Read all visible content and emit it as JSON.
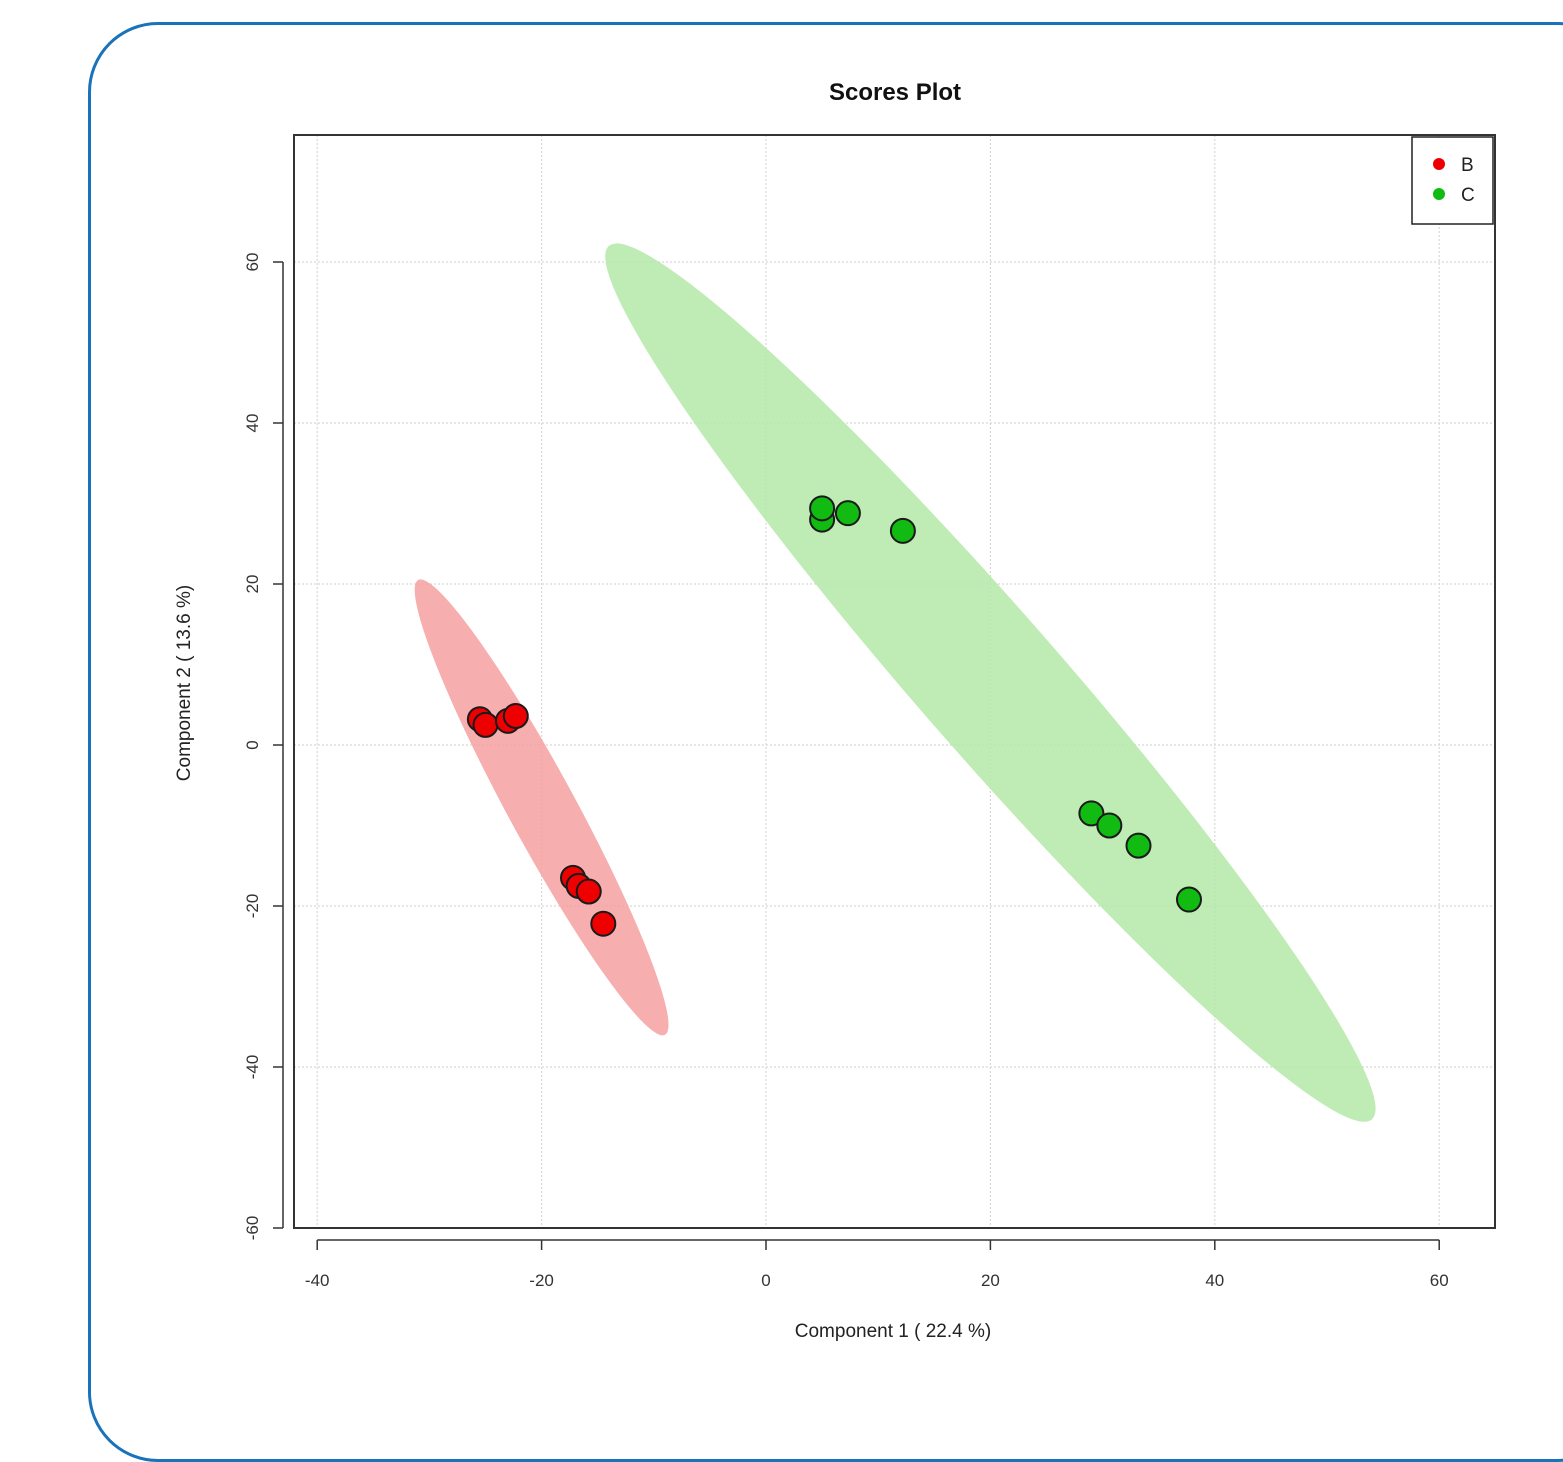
{
  "chart_data": {
    "type": "scatter",
    "title": "Scores Plot",
    "xlabel": "Component 1 ( 22.4 %)",
    "ylabel": "Component 2 ( 13.6 %)",
    "xlim": [
      -42,
      65
    ],
    "ylim": [
      -61,
      76
    ],
    "xticks": [
      -40,
      -20,
      0,
      20,
      40,
      60
    ],
    "yticks": [
      -60,
      -40,
      -20,
      0,
      20,
      40,
      60
    ],
    "xtick_labels": [
      "-40",
      "-20",
      "0",
      "20",
      "40",
      "60"
    ],
    "ytick_labels": [
      "-60",
      "-40",
      "-20",
      "0",
      "20",
      "40",
      "60"
    ],
    "grid": true,
    "legend_position": "top-right",
    "series": [
      {
        "name": "B",
        "color": "#ee0000",
        "ellipse_color": "#f4a0a0",
        "points": [
          {
            "x": -25.5,
            "y": 3.2
          },
          {
            "x": -25.0,
            "y": 2.5
          },
          {
            "x": -23.0,
            "y": 3.0
          },
          {
            "x": -22.3,
            "y": 3.6
          },
          {
            "x": -17.2,
            "y": -16.5
          },
          {
            "x": -16.7,
            "y": -17.5
          },
          {
            "x": -15.8,
            "y": -18.2
          },
          {
            "x": -14.5,
            "y": -22.2
          }
        ]
      },
      {
        "name": "C",
        "color": "#11bb11",
        "ellipse_color": "#b4e8a8",
        "points": [
          {
            "x": 5.0,
            "y": 28.0
          },
          {
            "x": 5.0,
            "y": 29.4
          },
          {
            "x": 7.3,
            "y": 28.8
          },
          {
            "x": 12.2,
            "y": 26.6
          },
          {
            "x": 29.0,
            "y": -8.5
          },
          {
            "x": 30.6,
            "y": -10.0
          },
          {
            "x": 33.2,
            "y": -12.5
          },
          {
            "x": 37.7,
            "y": -19.2
          }
        ]
      }
    ],
    "ellipses": [
      {
        "series": "B",
        "end1": [
          -31.0,
          20.5
        ],
        "end2": [
          -9.0,
          -36.0
        ],
        "minor_halfwidth": 3.0
      },
      {
        "series": "C",
        "end1": [
          -14.0,
          62.0
        ],
        "end2": [
          54.0,
          -46.5
        ],
        "minor_halfwidth": 6.3
      }
    ]
  }
}
